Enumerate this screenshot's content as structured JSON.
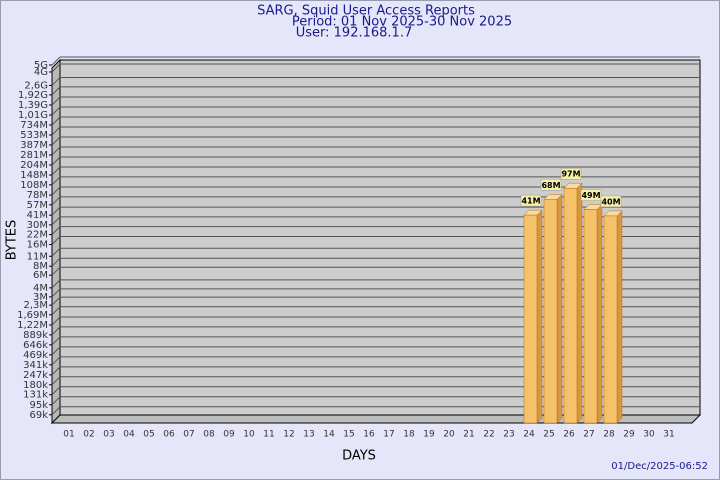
{
  "chart_data": {
    "type": "bar",
    "title": "SARG, Squid User Access Reports",
    "period": "Period: 01 Nov 2025-30 Nov 2025",
    "user": "User: 192.168.1.7",
    "x_label": "DAYS",
    "y_label": "BYTES",
    "timestamp": "01/Dec/2025-06:52",
    "categories": [
      "01",
      "02",
      "03",
      "04",
      "05",
      "06",
      "07",
      "08",
      "09",
      "10",
      "11",
      "12",
      "13",
      "14",
      "15",
      "16",
      "17",
      "18",
      "19",
      "20",
      "21",
      "22",
      "23",
      "24",
      "25",
      "26",
      "27",
      "28",
      "29",
      "30",
      "31"
    ],
    "values": [
      null,
      null,
      null,
      null,
      null,
      null,
      null,
      null,
      null,
      null,
      null,
      null,
      null,
      null,
      null,
      null,
      null,
      null,
      null,
      null,
      null,
      null,
      null,
      41000000,
      68000000,
      97000000,
      49000000,
      40000000,
      null,
      null,
      null
    ],
    "value_labels": [
      null,
      null,
      null,
      null,
      null,
      null,
      null,
      null,
      null,
      null,
      null,
      null,
      null,
      null,
      null,
      null,
      null,
      null,
      null,
      null,
      null,
      null,
      null,
      "41M",
      "68M",
      "97M",
      "49M",
      "40M",
      null,
      null,
      null
    ],
    "color": "#f5c26b",
    "log_scale": true,
    "grid": true,
    "ylim": [
      53000,
      5000000000
    ],
    "yticks": [
      {
        "value": 5000000000,
        "label": "5G"
      },
      {
        "value": 4000000000,
        "label": "4G"
      },
      {
        "value": 2600000000,
        "label": "2,6G"
      },
      {
        "value": 1920000000,
        "label": "1,92G"
      },
      {
        "value": 1390000000,
        "label": "1,39G"
      },
      {
        "value": 1010000000,
        "label": "1,01G"
      },
      {
        "value": 734000000,
        "label": "734M"
      },
      {
        "value": 533000000,
        "label": "533M"
      },
      {
        "value": 387000000,
        "label": "387M"
      },
      {
        "value": 281000000,
        "label": "281M"
      },
      {
        "value": 204000000,
        "label": "204M"
      },
      {
        "value": 148000000,
        "label": "148M"
      },
      {
        "value": 108000000,
        "label": "108M"
      },
      {
        "value": 78000000,
        "label": "78M"
      },
      {
        "value": 57000000,
        "label": "57M"
      },
      {
        "value": 41000000,
        "label": "41M"
      },
      {
        "value": 30000000,
        "label": "30M"
      },
      {
        "value": 22000000,
        "label": "22M"
      },
      {
        "value": 16000000,
        "label": "16M"
      },
      {
        "value": 11000000,
        "label": "11M"
      },
      {
        "value": 8000000,
        "label": "8M"
      },
      {
        "value": 6000000,
        "label": "6M"
      },
      {
        "value": 4000000,
        "label": "4M"
      },
      {
        "value": 3000000,
        "label": "3M"
      },
      {
        "value": 2300000,
        "label": "2,3M"
      },
      {
        "value": 1690000,
        "label": "1,69M"
      },
      {
        "value": 1220000,
        "label": "1,22M"
      },
      {
        "value": 889000,
        "label": "889k"
      },
      {
        "value": 646000,
        "label": "646k"
      },
      {
        "value": 469000,
        "label": "469k"
      },
      {
        "value": 341000,
        "label": "341k"
      },
      {
        "value": 247000,
        "label": "247k"
      },
      {
        "value": 180000,
        "label": "180k"
      },
      {
        "value": 131000,
        "label": "131k"
      },
      {
        "value": 95000,
        "label": "95k"
      },
      {
        "value": 69000,
        "label": "69k"
      }
    ]
  }
}
